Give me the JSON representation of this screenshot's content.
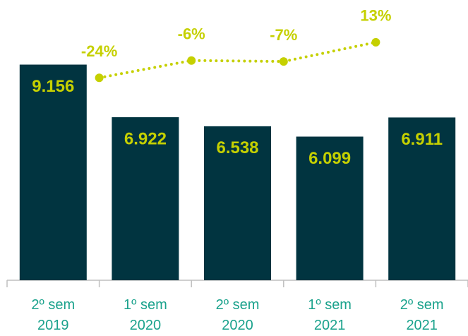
{
  "chart_data": {
    "type": "bar",
    "categories": [
      "2º sem 2019",
      "1º sem 2020",
      "2º sem 2020",
      "1º sem 2021",
      "2º sem 2021"
    ],
    "series": [
      {
        "type": "bar",
        "color": "#013440",
        "values": [
          9156,
          6922,
          6538,
          6099,
          6911
        ],
        "value_labels": [
          "9.156",
          "6.922",
          "6.538",
          "6.099",
          "6.911"
        ]
      },
      {
        "type": "line",
        "axis": "y2",
        "color": "#c5d000",
        "values": [
          null,
          -24,
          -6,
          -7,
          13
        ],
        "value_labels": [
          null,
          "-24%",
          "-6%",
          "-7%",
          "13%"
        ]
      }
    ],
    "ylim": [
      0,
      11000
    ],
    "y2lim": [
      -235,
      35
    ]
  }
}
